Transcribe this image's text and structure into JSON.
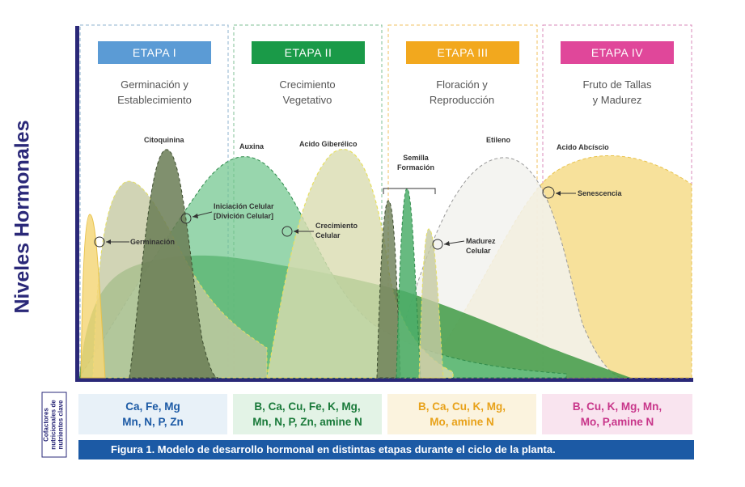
{
  "y_axis_label": "Niveles Hormonales",
  "nutrient_side_label": "Cofactores nutricionales de nutrientes clave",
  "caption": "Figura 1. Modelo de desarrollo hormonal en distintas etapas durante el ciclo de la planta.",
  "stages": [
    {
      "label": "ETAPA I",
      "description": "Germinación y\nEstablecimiento",
      "color": "#5b9bd5",
      "nutrients": "Ca, Fe, Mg\nMn, N, P, Zn",
      "nutrient_color": "#1c5aa5",
      "nutrient_bg": "#e8f1f8",
      "border": "#8fb3cf"
    },
    {
      "label": "ETAPA II",
      "description": "Crecimiento\nVegetativo",
      "color": "#1a9a48",
      "nutrients": "B, Ca, Cu, Fe, K, Mg,\nMn, N, P, Zn, amine N",
      "nutrient_color": "#1a7a3a",
      "nutrient_bg": "#e3f3e6",
      "border": "#7fbf95"
    },
    {
      "label": "ETAPA III",
      "description": "Floración y\nReproducción",
      "color": "#f2a81e",
      "nutrients": "B, Ca, Cu, K, Mg,\nMo, amine N",
      "nutrient_color": "#e8a21a",
      "nutrient_bg": "#fbf3de",
      "border": "#f0c060"
    },
    {
      "label": "ETAPA IV",
      "description": "Fruto de Tallas\ny Madurez",
      "color": "#e0479a",
      "nutrients": "B, Cu, K, Mg, Mn,\nMo, P,amine N",
      "nutrient_color": "#c8368a",
      "nutrient_bg": "#f9e4ef",
      "border": "#d98ab8"
    }
  ],
  "hormones": [
    {
      "name": "Citoquinina"
    },
    {
      "name": "Auxina"
    },
    {
      "name": "Acido Giberélico"
    },
    {
      "name": "Semilla\nFormación"
    },
    {
      "name": "Etileno"
    },
    {
      "name": "Acido Abcíscio"
    }
  ],
  "events": [
    {
      "name": "Germinación"
    },
    {
      "name": "Iniciación Celular\n[Divición Celular]"
    },
    {
      "name": "Crecimiento\nCelular"
    },
    {
      "name": "Madurez\nCelular"
    },
    {
      "name": "Senescencia"
    }
  ]
}
